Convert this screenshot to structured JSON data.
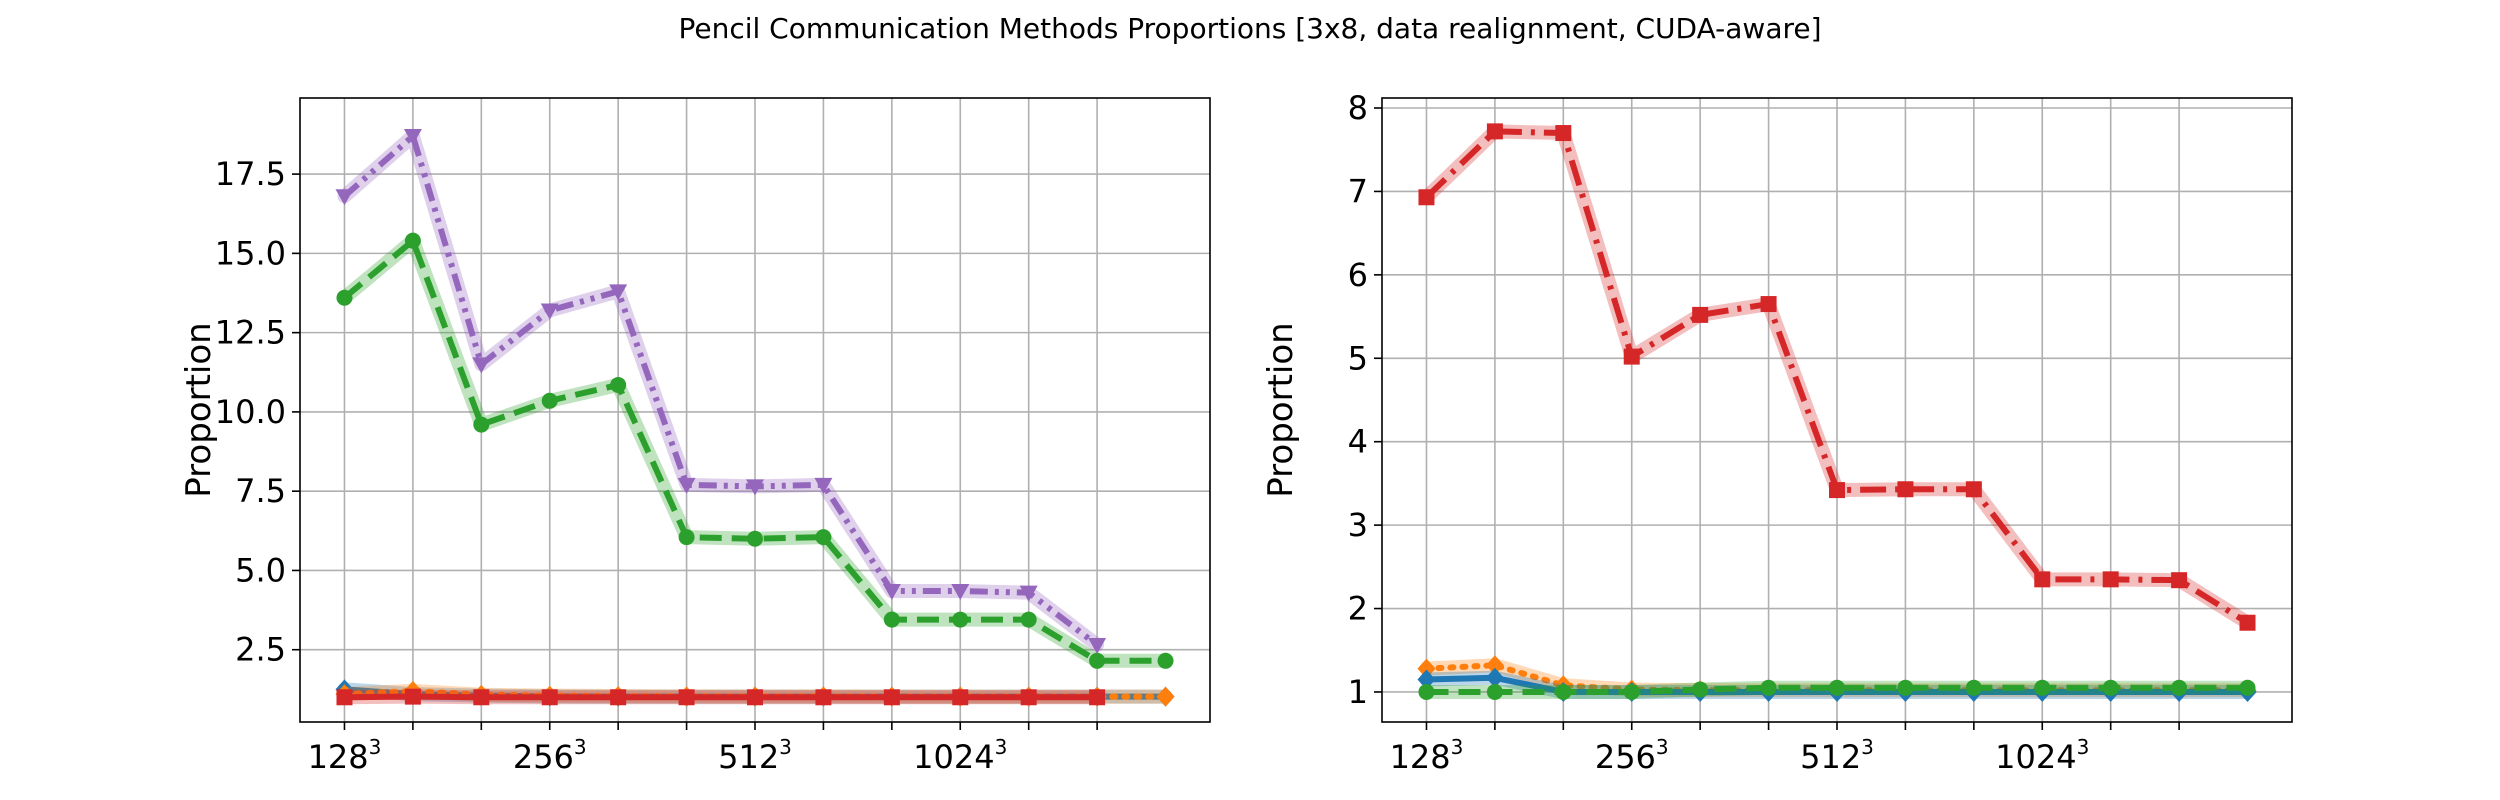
{
  "title": "Pencil Communication Methods Proportions [3x8, data realignment, CUDA-aware]",
  "colors": {
    "blue": "#1f77b4",
    "orange": "#ff7f0e",
    "green": "#2ca02c",
    "red": "#d62728",
    "purple": "#9467bd",
    "grid": "#b0b0b0",
    "axes": "#000000"
  },
  "chart_data": [
    {
      "type": "line",
      "ylabel": "Proportion",
      "xlabel": "",
      "grid": true,
      "x": [
        0,
        1,
        2,
        3,
        4,
        5,
        6,
        7,
        8,
        9,
        10,
        11,
        12
      ],
      "xlim": [
        -0.65,
        12.65
      ],
      "ylim": [
        0.22,
        19.9
      ],
      "xticks": [
        0,
        1,
        2,
        3,
        4,
        5,
        6,
        7,
        8,
        9,
        10,
        11
      ],
      "xtick_labels": [
        {
          "pos": 0,
          "base": "128",
          "sup": "3"
        },
        {
          "pos": 3,
          "base": "256",
          "sup": "3"
        },
        {
          "pos": 6,
          "base": "512",
          "sup": "3"
        },
        {
          "pos": 9,
          "base": "1024",
          "sup": "3"
        }
      ],
      "yticks": [
        2.5,
        5.0,
        7.5,
        10.0,
        12.5,
        15.0,
        17.5
      ],
      "ytick_labels": [
        "2.5",
        "5.0",
        "7.5",
        "10.0",
        "12.5",
        "15.0",
        "17.5"
      ],
      "series": [
        {
          "color": "blue",
          "marker": "diamond",
          "dash": "solid",
          "values": [
            1.25,
            1.1,
            1.05,
            1.03,
            1.02,
            1.02,
            1.02,
            1.02,
            1.02,
            1.02,
            1.02,
            1.02,
            1.02
          ]
        },
        {
          "color": "orange",
          "marker": "diamond",
          "dash": "dot",
          "values": [
            1.1,
            1.2,
            1.08,
            1.05,
            1.04,
            1.03,
            1.03,
            1.03,
            1.02,
            1.02,
            1.02,
            1.02,
            1.02
          ]
        },
        {
          "color": "green",
          "marker": "circle",
          "dash": "dashed",
          "values": [
            13.6,
            15.4,
            9.6,
            10.35,
            10.85,
            6.05,
            6.0,
            6.05,
            3.45,
            3.45,
            3.45,
            2.15,
            2.15
          ]
        },
        {
          "color": "purple",
          "marker": "tri_down",
          "dash": "dashdotdot",
          "values": [
            16.8,
            18.7,
            11.5,
            13.2,
            13.8,
            7.7,
            7.65,
            7.7,
            4.35,
            4.35,
            4.3,
            2.65,
            null
          ]
        },
        {
          "color": "red",
          "marker": "square",
          "dash": "solid",
          "values": [
            1.0,
            1.02,
            1.0,
            1.0,
            1.0,
            1.0,
            1.0,
            1.0,
            1.0,
            1.0,
            1.0,
            1.0,
            null
          ]
        }
      ]
    },
    {
      "type": "line",
      "ylabel": "Proportion",
      "xlabel": "",
      "grid": true,
      "x": [
        0,
        1,
        2,
        3,
        4,
        5,
        6,
        7,
        8,
        9,
        10,
        11,
        12
      ],
      "xlim": [
        -0.65,
        12.65
      ],
      "ylim": [
        0.64,
        8.12
      ],
      "xticks": [
        0,
        1,
        2,
        3,
        4,
        5,
        6,
        7,
        8,
        9,
        10,
        11
      ],
      "xtick_labels": [
        {
          "pos": 0,
          "base": "128",
          "sup": "3"
        },
        {
          "pos": 3,
          "base": "256",
          "sup": "3"
        },
        {
          "pos": 6,
          "base": "512",
          "sup": "3"
        },
        {
          "pos": 9,
          "base": "1024",
          "sup": "3"
        }
      ],
      "yticks": [
        1,
        2,
        3,
        4,
        5,
        6,
        7,
        8
      ],
      "ytick_labels": [
        "1",
        "2",
        "3",
        "4",
        "5",
        "6",
        "7",
        "8"
      ],
      "series": [
        {
          "color": "red",
          "marker": "square",
          "dash": "dashdot",
          "values": [
            6.93,
            7.72,
            7.7,
            5.02,
            5.52,
            5.65,
            3.42,
            3.43,
            3.43,
            2.35,
            2.35,
            2.34,
            1.83
          ]
        },
        {
          "color": "orange",
          "marker": "diamond",
          "dash": "dot",
          "values": [
            1.28,
            1.32,
            1.08,
            1.03,
            1.02,
            1.02,
            1.02,
            1.02,
            1.02,
            1.02,
            1.02,
            1.02,
            1.02
          ]
        },
        {
          "color": "blue",
          "marker": "diamond",
          "dash": "solid",
          "values": [
            1.15,
            1.17,
            1.0,
            1.0,
            1.0,
            1.0,
            1.0,
            1.0,
            1.0,
            1.0,
            1.0,
            1.0,
            1.0
          ]
        },
        {
          "color": "green",
          "marker": "circle",
          "dash": "dashed",
          "values": [
            1.0,
            1.0,
            1.0,
            1.0,
            1.03,
            1.05,
            1.05,
            1.05,
            1.05,
            1.05,
            1.05,
            1.05,
            1.05
          ]
        }
      ]
    }
  ]
}
